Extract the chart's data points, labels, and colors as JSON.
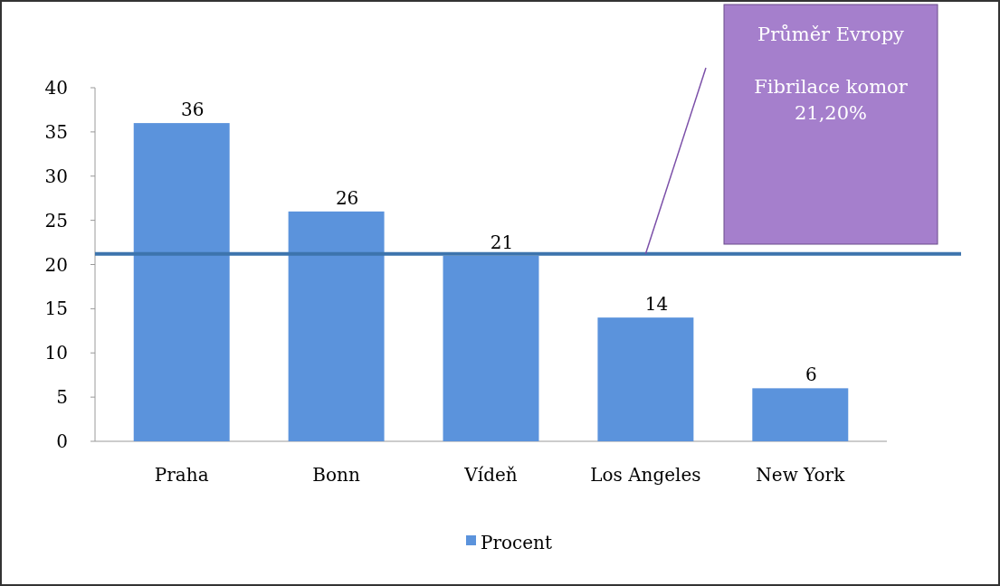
{
  "chart_data": {
    "type": "bar",
    "categories": [
      "Praha",
      "Bonn",
      "Vídeň",
      "Los Angeles",
      "New York"
    ],
    "series": [
      {
        "name": "Procent",
        "color": "#5b93dc",
        "values": [
          36,
          26,
          21,
          14,
          6
        ]
      }
    ],
    "ylim": [
      0,
      40
    ],
    "yticks": [
      0,
      5,
      10,
      15,
      20,
      25,
      30,
      35,
      40
    ],
    "data_labels": true,
    "grid": false,
    "legend": "bottom",
    "ref_lines": [
      {
        "axis": "y",
        "value": 21.2,
        "label": "Průměr Evropy\n\nFibrilace komor\n21,20%",
        "color": "#3d74ad"
      }
    ]
  }
}
